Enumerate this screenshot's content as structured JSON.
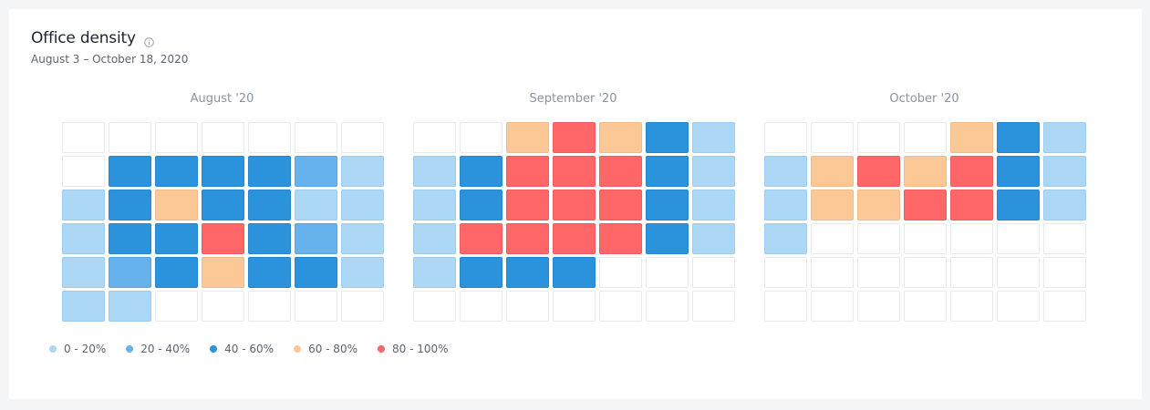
{
  "header": {
    "title": "Office density",
    "subtitle": "August 3 – October 18, 2020"
  },
  "colors": {
    "empty": "#ffffff",
    "empty_border": "#e6e9ee",
    "level_1": "#acd7f5",
    "level_2": "#65b2ec",
    "level_3": "#2b92dc",
    "level_4": "#fcc896",
    "level_5": "#fe6668"
  },
  "legend": [
    {
      "label": "0 - 20%",
      "level": 1
    },
    {
      "label": "20 - 40%",
      "level": 2
    },
    {
      "label": "40 - 60%",
      "level": 3
    },
    {
      "label": "60 - 80%",
      "level": 4
    },
    {
      "label": "80 - 100%",
      "level": 5
    }
  ],
  "chart_data": {
    "type": "heatmap",
    "title": "Office density",
    "subtitle": "August 3 – October 18, 2020",
    "value_note": "cell values are density levels 0-5 (0 = no data, 1 = 0-20%, 2 = 20-40%, 3 = 40-60%, 4 = 60-80%, 5 = 80-100%)",
    "months": [
      {
        "label": "August '20",
        "weeks": [
          [
            0,
            0,
            0,
            0,
            0,
            0,
            0
          ],
          [
            0,
            3,
            3,
            3,
            3,
            2,
            1
          ],
          [
            1,
            3,
            4,
            3,
            3,
            1,
            1
          ],
          [
            1,
            3,
            3,
            5,
            3,
            2,
            1
          ],
          [
            1,
            2,
            3,
            4,
            3,
            3,
            1
          ],
          [
            1,
            1,
            0,
            0,
            0,
            0,
            0
          ]
        ]
      },
      {
        "label": "September '20",
        "weeks": [
          [
            0,
            0,
            4,
            5,
            4,
            3,
            1
          ],
          [
            1,
            3,
            5,
            5,
            5,
            3,
            1
          ],
          [
            1,
            3,
            5,
            5,
            5,
            3,
            1
          ],
          [
            1,
            5,
            5,
            5,
            5,
            3,
            1
          ],
          [
            1,
            3,
            3,
            3,
            0,
            0,
            0
          ],
          [
            0,
            0,
            0,
            0,
            0,
            0,
            0
          ]
        ]
      },
      {
        "label": "October '20",
        "weeks": [
          [
            0,
            0,
            0,
            0,
            4,
            3,
            1
          ],
          [
            1,
            4,
            5,
            4,
            5,
            3,
            1
          ],
          [
            1,
            4,
            4,
            5,
            5,
            3,
            1
          ],
          [
            1,
            0,
            0,
            0,
            0,
            0,
            0
          ],
          [
            0,
            0,
            0,
            0,
            0,
            0,
            0
          ],
          [
            0,
            0,
            0,
            0,
            0,
            0,
            0
          ]
        ]
      }
    ]
  }
}
